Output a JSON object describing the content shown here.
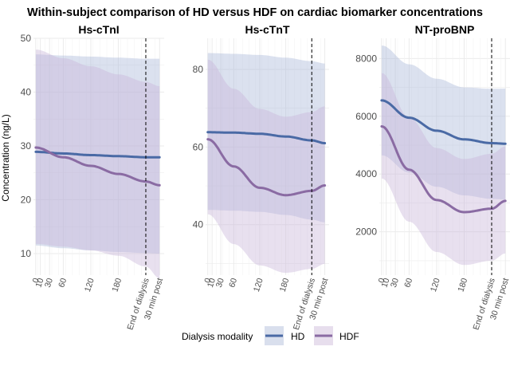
{
  "chart_data": {
    "type": "line",
    "title": "Within-subject comparison of HD versus HDF on cardiac biomarker concentrations",
    "ylabel": "Concentration (ng/L)",
    "x_ticks": [
      {
        "label": "0",
        "x": 0
      },
      {
        "label": "10",
        "x": 10
      },
      {
        "label": "30",
        "x": 30
      },
      {
        "label": "60",
        "x": 60
      },
      {
        "label": "120",
        "x": 120
      },
      {
        "label": "180",
        "x": 180
      },
      {
        "label": "End of dialysis",
        "x": 240
      },
      {
        "label": "30 min post",
        "x": 270
      }
    ],
    "xlim": [
      -5,
      280
    ],
    "vline_x": 240,
    "legend": {
      "title": "Dialysis modality",
      "position": "bottom",
      "items": [
        {
          "name": "HD",
          "color": "#4a6aa5",
          "fill": "#aab8d8"
        },
        {
          "name": "HDF",
          "color": "#8a6ba3",
          "fill": "#c9b6d8"
        }
      ]
    },
    "panels": [
      {
        "title": "Hs-cTnI",
        "ylim": [
          6,
          50
        ],
        "yticks": [
          10,
          20,
          30,
          40,
          50
        ],
        "x": [
          0,
          60,
          120,
          180,
          240,
          270
        ],
        "series": [
          {
            "name": "HD",
            "values": [
              28.9,
              28.6,
              28.3,
              28.1,
              27.9,
              27.9
            ],
            "lower": [
              11.5,
              11.0,
              10.6,
              10.3,
              10.1,
              10.0
            ],
            "upper": [
              47.0,
              46.8,
              46.6,
              46.4,
              46.2,
              46.2
            ]
          },
          {
            "name": "HDF",
            "values": [
              29.7,
              27.9,
              26.3,
              24.8,
              23.4,
              22.7
            ],
            "lower": [
              11.8,
              11.3,
              10.6,
              9.6,
              7.6,
              5.4
            ],
            "upper": [
              47.9,
              46.3,
              44.8,
              43.3,
              41.9,
              41.1
            ]
          }
        ]
      },
      {
        "title": "Hs-cTnT",
        "ylim": [
          27,
          88
        ],
        "yticks": [
          40,
          60,
          80
        ],
        "x": [
          0,
          60,
          120,
          180,
          240,
          270
        ],
        "series": [
          {
            "name": "HD",
            "values": [
              63.8,
              63.7,
              63.4,
              62.7,
              61.7,
              61.0
            ],
            "lower": [
              43.8,
              43.6,
              43.3,
              42.5,
              41.3,
              40.6
            ],
            "upper": [
              84.2,
              84.0,
              83.7,
              83.0,
              82.1,
              81.5
            ]
          },
          {
            "name": "HDF",
            "values": [
              62.0,
              55.0,
              49.5,
              47.6,
              48.7,
              50.1
            ],
            "lower": [
              42.7,
              35.0,
              29.5,
              27.6,
              28.6,
              29.9
            ],
            "upper": [
              82.5,
              75.0,
              69.8,
              67.8,
              69.0,
              70.5
            ]
          }
        ]
      },
      {
        "title": "NT-proBNP",
        "ylim": [
          500,
          8700
        ],
        "yticks": [
          2000,
          4000,
          6000,
          8000
        ],
        "x": [
          0,
          60,
          120,
          180,
          240,
          270
        ],
        "series": [
          {
            "name": "HD",
            "values": [
              6550,
              5950,
              5500,
              5200,
              5070,
              5050
            ],
            "lower": [
              4650,
              4050,
              3560,
              3260,
              3140,
              3120
            ],
            "upper": [
              8450,
              7800,
              7300,
              7000,
              6950,
              6960
            ]
          },
          {
            "name": "HDF",
            "values": [
              5650,
              4150,
              3100,
              2680,
              2800,
              3070
            ],
            "lower": [
              3850,
              2350,
              1300,
              850,
              1000,
              1250
            ],
            "upper": [
              7500,
              5950,
              4900,
              4520,
              4700,
              4960
            ]
          }
        ]
      }
    ]
  }
}
